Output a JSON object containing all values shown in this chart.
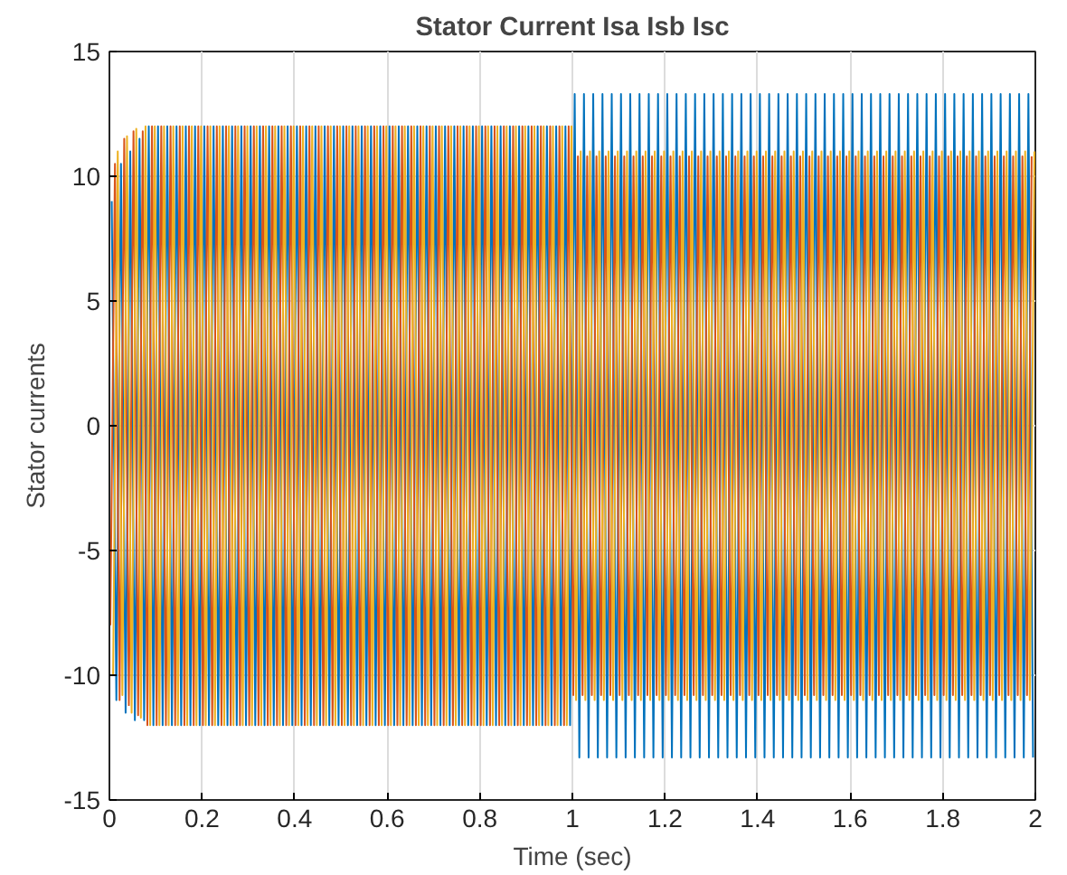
{
  "chart_data": {
    "type": "line",
    "title": "Stator Current Isa Isb Isc",
    "xlabel": "Time (sec)",
    "ylabel": "Stator currents",
    "xlim": [
      0,
      2
    ],
    "ylim": [
      -15,
      15
    ],
    "xticks": [
      0,
      0.2,
      0.4,
      0.6,
      0.8,
      1,
      1.2,
      1.4,
      1.6,
      1.8,
      2
    ],
    "yticks": [
      -15,
      -10,
      -5,
      0,
      5,
      10,
      15
    ],
    "grid": true,
    "line_style": "solid",
    "series": [
      {
        "color": "#0072bd",
        "x": [
          0.005,
          0.015,
          0.025,
          0.035,
          0.045,
          0.055,
          0.065,
          0.075,
          0.085,
          0.095,
          0.105,
          0.115,
          0.125,
          0.135,
          0.145,
          0.155,
          0.165,
          0.175,
          0.185,
          0.195,
          0.205,
          0.215,
          0.225,
          0.235,
          0.245,
          0.255,
          0.265,
          0.275,
          0.285,
          0.295,
          0.305,
          0.315,
          0.325,
          0.335,
          0.345,
          0.355,
          0.365,
          0.375,
          0.385,
          0.395,
          0.405,
          0.415,
          0.425,
          0.435,
          0.445,
          0.455,
          0.465,
          0.475,
          0.485,
          0.495,
          0.505,
          0.515,
          0.525,
          0.535,
          0.545,
          0.555,
          0.565,
          0.575,
          0.585,
          0.595,
          0.605,
          0.615,
          0.625,
          0.635,
          0.645,
          0.655,
          0.665,
          0.675,
          0.685,
          0.695,
          0.705,
          0.715,
          0.725,
          0.735,
          0.745,
          0.755,
          0.765,
          0.775,
          0.785,
          0.795,
          0.805,
          0.815,
          0.825,
          0.835,
          0.845,
          0.855,
          0.865,
          0.875,
          0.885,
          0.895,
          0.905,
          0.915,
          0.925,
          0.935,
          0.945,
          0.955,
          0.965,
          0.975,
          0.985,
          0.995,
          1.005,
          1.015,
          1.025,
          1.035,
          1.045,
          1.055,
          1.065,
          1.075,
          1.085,
          1.095,
          1.105,
          1.115,
          1.125,
          1.135,
          1.145,
          1.155,
          1.165,
          1.175,
          1.185,
          1.195,
          1.205,
          1.215,
          1.225,
          1.235,
          1.245,
          1.255,
          1.265,
          1.275,
          1.285,
          1.295,
          1.305,
          1.315,
          1.325,
          1.335,
          1.345,
          1.355,
          1.365,
          1.375,
          1.385,
          1.395,
          1.405,
          1.415,
          1.425,
          1.435,
          1.445,
          1.455,
          1.465,
          1.475,
          1.485,
          1.495,
          1.505,
          1.515,
          1.525,
          1.535,
          1.545,
          1.555,
          1.565,
          1.575,
          1.585,
          1.595,
          1.605,
          1.615,
          1.625,
          1.635,
          1.645,
          1.655,
          1.665,
          1.675,
          1.685,
          1.695,
          1.705,
          1.715,
          1.725,
          1.735,
          1.745,
          1.755,
          1.765,
          1.775,
          1.785,
          1.795,
          1.805,
          1.815,
          1.825,
          1.835,
          1.845,
          1.855,
          1.865,
          1.875,
          1.885,
          1.895,
          1.905,
          1.915,
          1.925,
          1.935,
          1.945,
          1.955,
          1.965,
          1.975,
          1.985,
          1.995
        ],
        "values": [
          9,
          -11,
          10.5,
          -11.5,
          11,
          -11.8,
          11.5,
          -11.8,
          12,
          -12,
          12,
          -12,
          12,
          -12,
          12,
          -12,
          12,
          -12,
          12,
          -12,
          12,
          -12,
          12,
          -12,
          12,
          -12,
          12,
          -12,
          12,
          -12,
          12,
          -12,
          12,
          -12,
          12,
          -12,
          12,
          -12,
          12,
          -12,
          12,
          -12,
          12,
          -12,
          12,
          -12,
          12,
          -12,
          12,
          -12,
          12,
          -12,
          12,
          -12,
          12,
          -12,
          12,
          -12,
          12,
          -12,
          12,
          -12,
          12,
          -12,
          12,
          -12,
          12,
          -12,
          12,
          -12,
          12,
          -12,
          12,
          -12,
          12,
          -12,
          12,
          -12,
          12,
          -12,
          12,
          -12,
          12,
          -12,
          12,
          -12,
          12,
          -12,
          12,
          -12,
          12,
          -12,
          12,
          -12,
          12,
          -12,
          12,
          -12,
          12,
          -12,
          13.3,
          -13.3,
          13.3,
          -13.3,
          13.3,
          -13.3,
          13.3,
          -13.3,
          13.3,
          -13.3,
          13.3,
          -13.3,
          13.3,
          -13.3,
          13.3,
          -13.3,
          13.3,
          -13.3,
          13.3,
          -13.3,
          13.3,
          -13.3,
          13.3,
          -13.3,
          13.3,
          -13.3,
          13.3,
          -13.3,
          13.3,
          -13.3,
          13.3,
          -13.3,
          13.3,
          -13.3,
          13.3,
          -13.3,
          13.3,
          -13.3,
          13.3,
          -13.3,
          13.3,
          -13.3,
          13.3,
          -13.3,
          13.3,
          -13.3,
          13.3,
          -13.3,
          13.3,
          -13.3,
          13.3,
          -13.3,
          13.3,
          -13.3,
          13.3,
          -13.3,
          13.3,
          -13.3,
          13.3,
          -13.3,
          13.3,
          -13.3,
          13.3,
          -13.3,
          13.3,
          -13.3,
          13.3,
          -13.3,
          13.3,
          -13.3,
          13.3,
          -13.3,
          13.3,
          -13.3,
          13.3,
          -13.3,
          13.3,
          -13.3,
          13.3,
          -13.3,
          13.3,
          -13.3,
          13.3,
          -13.3,
          13.3,
          -13.3,
          13.3,
          -13.3,
          13.3,
          -13.3,
          13.3,
          -13.3,
          13.3,
          -13.3,
          13.3,
          -13.3,
          13.3,
          -13.3,
          13.3,
          -13.3
        ]
      },
      {
        "color": "#d95319",
        "x": [
          0.002,
          0.012,
          0.022,
          0.032,
          0.042,
          0.052,
          0.062,
          0.072,
          0.082,
          0.092,
          0.102,
          0.112,
          0.122,
          0.132,
          0.142,
          0.152,
          0.162,
          0.172,
          0.182,
          0.192,
          0.202,
          0.212,
          0.222,
          0.232,
          0.242,
          0.252,
          0.262,
          0.272,
          0.282,
          0.292,
          0.302,
          0.312,
          0.322,
          0.332,
          0.342,
          0.352,
          0.362,
          0.372,
          0.382,
          0.392,
          0.402,
          0.412,
          0.422,
          0.432,
          0.442,
          0.452,
          0.462,
          0.472,
          0.482,
          0.492,
          0.502,
          0.512,
          0.522,
          0.532,
          0.542,
          0.552,
          0.562,
          0.572,
          0.582,
          0.592,
          0.602,
          0.612,
          0.622,
          0.632,
          0.642,
          0.652,
          0.662,
          0.672,
          0.682,
          0.692,
          0.702,
          0.712,
          0.722,
          0.732,
          0.742,
          0.752,
          0.762,
          0.772,
          0.782,
          0.792,
          0.802,
          0.812,
          0.822,
          0.832,
          0.842,
          0.852,
          0.862,
          0.872,
          0.882,
          0.892,
          0.902,
          0.912,
          0.922,
          0.932,
          0.942,
          0.952,
          0.962,
          0.972,
          0.982,
          0.992,
          1.002,
          1.012,
          1.022,
          1.032,
          1.042,
          1.052,
          1.062,
          1.072,
          1.082,
          1.092,
          1.102,
          1.112,
          1.122,
          1.132,
          1.142,
          1.152,
          1.162,
          1.172,
          1.182,
          1.192,
          1.202,
          1.212,
          1.222,
          1.232,
          1.242,
          1.252,
          1.262,
          1.272,
          1.282,
          1.292,
          1.302,
          1.312,
          1.322,
          1.332,
          1.342,
          1.352,
          1.362,
          1.372,
          1.382,
          1.392,
          1.402,
          1.412,
          1.422,
          1.432,
          1.442,
          1.452,
          1.462,
          1.472,
          1.482,
          1.492,
          1.502,
          1.512,
          1.522,
          1.532,
          1.542,
          1.552,
          1.562,
          1.572,
          1.582,
          1.592,
          1.602,
          1.612,
          1.622,
          1.632,
          1.642,
          1.652,
          1.662,
          1.672,
          1.682,
          1.692,
          1.702,
          1.712,
          1.722,
          1.732,
          1.742,
          1.752,
          1.762,
          1.772,
          1.782,
          1.792,
          1.802,
          1.812,
          1.822,
          1.832,
          1.842,
          1.852,
          1.862,
          1.872,
          1.882,
          1.892,
          1.902,
          1.912,
          1.922,
          1.932,
          1.942,
          1.952,
          1.962,
          1.972,
          1.982,
          1.992
        ],
        "values": [
          -8,
          10.5,
          -11,
          11.5,
          -11.2,
          11.8,
          -11.6,
          11.8,
          -12,
          12,
          -12,
          12,
          -12,
          12,
          -12,
          12,
          -12,
          12,
          -12,
          12,
          -12,
          12,
          -12,
          12,
          -12,
          12,
          -12,
          12,
          -12,
          12,
          -12,
          12,
          -12,
          12,
          -12,
          12,
          -12,
          12,
          -12,
          12,
          -12,
          12,
          -12,
          12,
          -12,
          12,
          -12,
          12,
          -12,
          12,
          -12,
          12,
          -12,
          12,
          -12,
          12,
          -12,
          12,
          -12,
          12,
          -12,
          12,
          -12,
          12,
          -12,
          12,
          -12,
          12,
          -12,
          12,
          -12,
          12,
          -12,
          12,
          -12,
          12,
          -12,
          12,
          -12,
          12,
          -12,
          12,
          -12,
          12,
          -12,
          12,
          -12,
          12,
          -12,
          12,
          -12,
          12,
          -12,
          12,
          -12,
          12,
          -12,
          12,
          -12,
          12,
          -10.8,
          10.8,
          -10.8,
          10.8,
          -10.8,
          10.8,
          -10.8,
          10.8,
          -10.8,
          10.8,
          -10.8,
          10.8,
          -10.8,
          10.8,
          -10.8,
          10.8,
          -10.8,
          10.8,
          -10.8,
          10.8,
          -10.8,
          10.8,
          -10.8,
          10.8,
          -10.8,
          10.8,
          -10.8,
          10.8,
          -10.8,
          10.8,
          -10.8,
          10.8,
          -10.8,
          10.8,
          -10.8,
          10.8,
          -10.8,
          10.8,
          -10.8,
          10.8,
          -10.8,
          10.8,
          -10.8,
          10.8,
          -10.8,
          10.8,
          -10.8,
          10.8,
          -10.8,
          10.8,
          -10.8,
          10.8,
          -10.8,
          10.8,
          -10.8,
          10.8,
          -10.8,
          10.8,
          -10.8,
          10.8,
          -10.8,
          10.8,
          -10.8,
          10.8,
          -10.8,
          10.8,
          -10.8,
          10.8,
          -10.8,
          10.8,
          -10.8,
          10.8,
          -10.8,
          10.8,
          -10.8,
          10.8,
          -10.8,
          10.8,
          -10.8,
          10.8,
          -10.8,
          10.8,
          -10.8,
          10.8,
          -10.8,
          10.8,
          -10.8,
          10.8,
          -10.8,
          10.8,
          -10.8,
          10.8,
          -10.8,
          10.8,
          -10.8,
          10.8,
          -10.8,
          10.8,
          -10.8,
          10.8
        ]
      },
      {
        "color": "#edb120",
        "x": [
          0.008,
          0.018,
          0.028,
          0.038,
          0.048,
          0.058,
          0.068,
          0.078,
          0.088,
          0.098,
          0.108,
          0.118,
          0.128,
          0.138,
          0.148,
          0.158,
          0.168,
          0.178,
          0.188,
          0.198,
          0.208,
          0.218,
          0.228,
          0.238,
          0.248,
          0.258,
          0.268,
          0.278,
          0.288,
          0.298,
          0.308,
          0.318,
          0.328,
          0.338,
          0.348,
          0.358,
          0.368,
          0.378,
          0.388,
          0.398,
          0.408,
          0.418,
          0.428,
          0.438,
          0.448,
          0.458,
          0.468,
          0.478,
          0.488,
          0.498,
          0.508,
          0.518,
          0.528,
          0.538,
          0.548,
          0.558,
          0.568,
          0.578,
          0.588,
          0.598,
          0.608,
          0.618,
          0.628,
          0.638,
          0.648,
          0.658,
          0.668,
          0.678,
          0.688,
          0.698,
          0.708,
          0.718,
          0.728,
          0.738,
          0.748,
          0.758,
          0.768,
          0.778,
          0.788,
          0.798,
          0.808,
          0.818,
          0.828,
          0.838,
          0.848,
          0.858,
          0.868,
          0.878,
          0.888,
          0.898,
          0.908,
          0.918,
          0.928,
          0.938,
          0.948,
          0.958,
          0.968,
          0.978,
          0.988,
          0.998,
          1.008,
          1.018,
          1.028,
          1.038,
          1.048,
          1.058,
          1.068,
          1.078,
          1.088,
          1.098,
          1.108,
          1.118,
          1.128,
          1.138,
          1.148,
          1.158,
          1.168,
          1.178,
          1.188,
          1.198,
          1.208,
          1.218,
          1.228,
          1.238,
          1.248,
          1.258,
          1.268,
          1.278,
          1.288,
          1.298,
          1.308,
          1.318,
          1.328,
          1.338,
          1.348,
          1.358,
          1.368,
          1.378,
          1.388,
          1.398,
          1.408,
          1.418,
          1.428,
          1.438,
          1.448,
          1.458,
          1.468,
          1.478,
          1.488,
          1.498,
          1.508,
          1.518,
          1.528,
          1.538,
          1.548,
          1.558,
          1.568,
          1.578,
          1.588,
          1.598,
          1.608,
          1.618,
          1.628,
          1.638,
          1.648,
          1.658,
          1.668,
          1.678,
          1.688,
          1.698,
          1.708,
          1.718,
          1.728,
          1.738,
          1.748,
          1.758,
          1.768,
          1.778,
          1.788,
          1.798,
          1.808,
          1.818,
          1.828,
          1.838,
          1.848,
          1.858,
          1.868,
          1.878,
          1.888,
          1.898,
          1.908,
          1.918,
          1.928,
          1.938,
          1.948,
          1.958,
          1.968,
          1.978,
          1.988,
          1.998
        ],
        "values": [
          -10,
          11,
          -10.8,
          11.6,
          -11.5,
          11.9,
          -11.7,
          12,
          -12,
          12,
          -12,
          12,
          -12,
          12,
          -12,
          12,
          -12,
          12,
          -12,
          12,
          -12,
          12,
          -12,
          12,
          -12,
          12,
          -12,
          12,
          -12,
          12,
          -12,
          12,
          -12,
          12,
          -12,
          12,
          -12,
          12,
          -12,
          12,
          -12,
          12,
          -12,
          12,
          -12,
          12,
          -12,
          12,
          -12,
          12,
          -12,
          12,
          -12,
          12,
          -12,
          12,
          -12,
          12,
          -12,
          12,
          -12,
          12,
          -12,
          12,
          -12,
          12,
          -12,
          12,
          -12,
          12,
          -12,
          12,
          -12,
          12,
          -12,
          12,
          -12,
          12,
          -12,
          12,
          -12,
          12,
          -12,
          12,
          -12,
          12,
          -12,
          12,
          -12,
          12,
          -12,
          12,
          -12,
          12,
          -12,
          12,
          -12,
          12,
          -12,
          12,
          -11,
          11,
          -11,
          11,
          -11,
          11,
          -11,
          11,
          -11,
          11,
          -11,
          11,
          -11,
          11,
          -11,
          11,
          -11,
          11,
          -11,
          11,
          -11,
          11,
          -11,
          11,
          -11,
          11,
          -11,
          11,
          -11,
          11,
          -11,
          11,
          -11,
          11,
          -11,
          11,
          -11,
          11,
          -11,
          11,
          -11,
          11,
          -11,
          11,
          -11,
          11,
          -11,
          11,
          -11,
          11,
          -11,
          11,
          -11,
          11,
          -11,
          11,
          -11,
          11,
          -11,
          11,
          -11,
          11,
          -11,
          11,
          -11,
          11,
          -11,
          11,
          -11,
          11,
          -11,
          11,
          -11,
          11,
          -11,
          11,
          -11,
          11,
          -11,
          11,
          -11,
          11,
          -11,
          11,
          -11,
          11,
          -11,
          11,
          -11,
          11,
          -11,
          11,
          -11,
          11,
          -11,
          11,
          -11,
          11,
          -11,
          11
        ]
      }
    ]
  }
}
